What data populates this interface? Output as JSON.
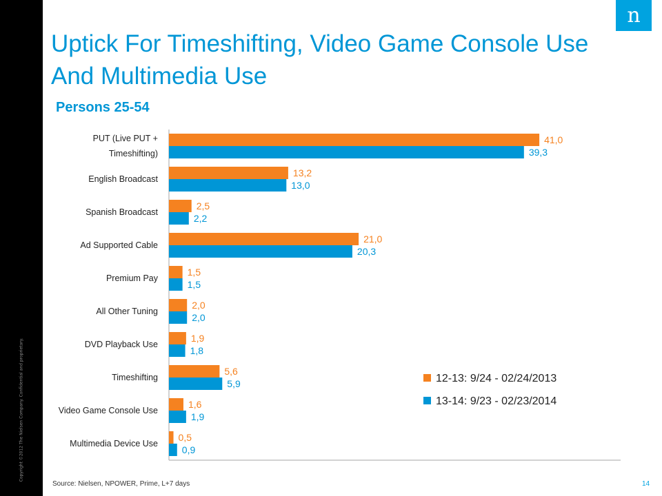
{
  "header": {
    "title": "Uptick For Timeshifting, Video Game Console Use And Multimedia Use",
    "subtitle": "Persons 25-54",
    "logo_text": "n"
  },
  "footer": {
    "source": "Source: Nielsen, NPOWER, Prime, L+7 days",
    "page_number": "14",
    "copyright": "Copyright ©2012 The Nielsen Company. Confidential and proprietary."
  },
  "colors": {
    "series_2013": "#f58220",
    "series_2014": "#0096d6",
    "title": "#0096d6",
    "logo_bg": "#00a3e0"
  },
  "chart_data": {
    "type": "bar",
    "orientation": "horizontal",
    "categories": [
      [
        "PUT (Live PUT +",
        "Timeshifting)"
      ],
      [
        "English Broadcast"
      ],
      [
        "Spanish Broadcast"
      ],
      [
        "Ad Supported Cable"
      ],
      [
        "Premium Pay"
      ],
      [
        "All Other Tuning"
      ],
      [
        "DVD Playback Use"
      ],
      [
        "Timeshifting"
      ],
      [
        "Video Game Console Use"
      ],
      [
        "Multimedia Device Use"
      ]
    ],
    "series": [
      {
        "name": "12-13: 9/24 - 02/24/2013",
        "color": "#f58220",
        "values": [
          41.0,
          13.2,
          2.5,
          21.0,
          1.5,
          2.0,
          1.9,
          5.6,
          1.6,
          0.5
        ],
        "labels": [
          "41,0",
          "13,2",
          "2,5",
          "21,0",
          "1,5",
          "2,0",
          "1,9",
          "5,6",
          "1,6",
          "0,5"
        ]
      },
      {
        "name": "13-14: 9/23 - 02/23/2014",
        "color": "#0096d6",
        "values": [
          39.3,
          13.0,
          2.2,
          20.3,
          1.5,
          2.0,
          1.8,
          5.9,
          1.9,
          0.9
        ],
        "labels": [
          "39,3",
          "13,0",
          "2,2",
          "20,3",
          "1,5",
          "2,0",
          "1,8",
          "5,9",
          "1,9",
          "0,9"
        ]
      }
    ],
    "grid": false,
    "legend_position": "bottom-right"
  }
}
